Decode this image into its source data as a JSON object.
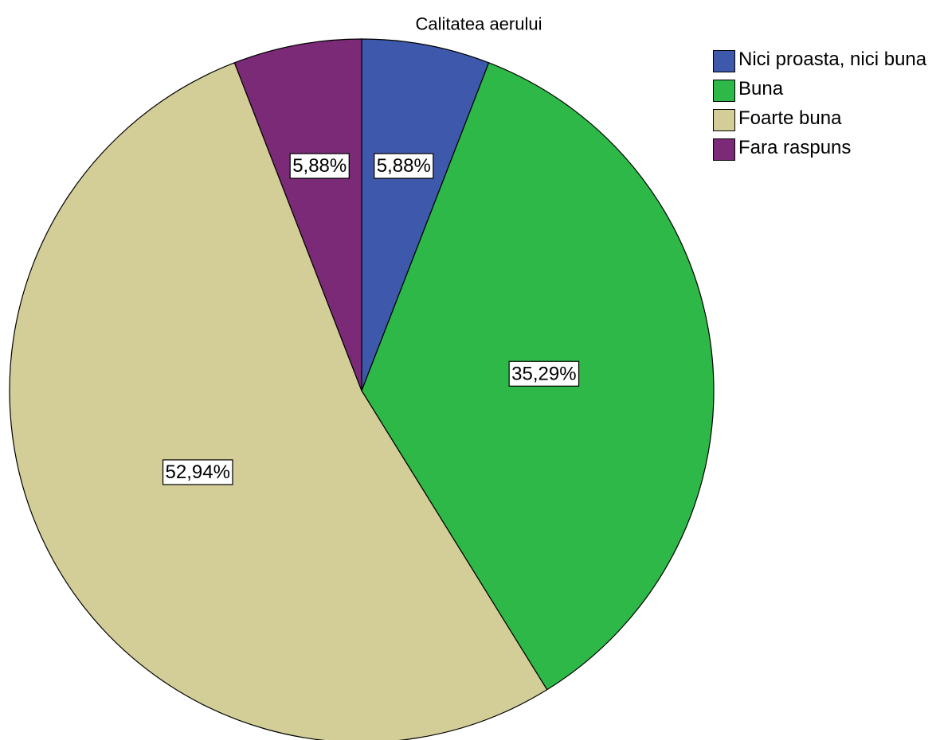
{
  "chart_data": {
    "type": "pie",
    "title": "Calitatea aerului",
    "categories": [
      "Nici proasta, nici buna",
      "Buna",
      "Foarte buna",
      "Fara raspuns"
    ],
    "values": [
      5.88,
      35.29,
      52.94,
      5.88
    ],
    "value_labels": [
      "5,88%",
      "35,29%",
      "52,94%",
      "5,88%"
    ],
    "colors": [
      "#3e58ac",
      "#2eb848",
      "#d3ce97",
      "#7b2a77"
    ],
    "legend": "right"
  }
}
